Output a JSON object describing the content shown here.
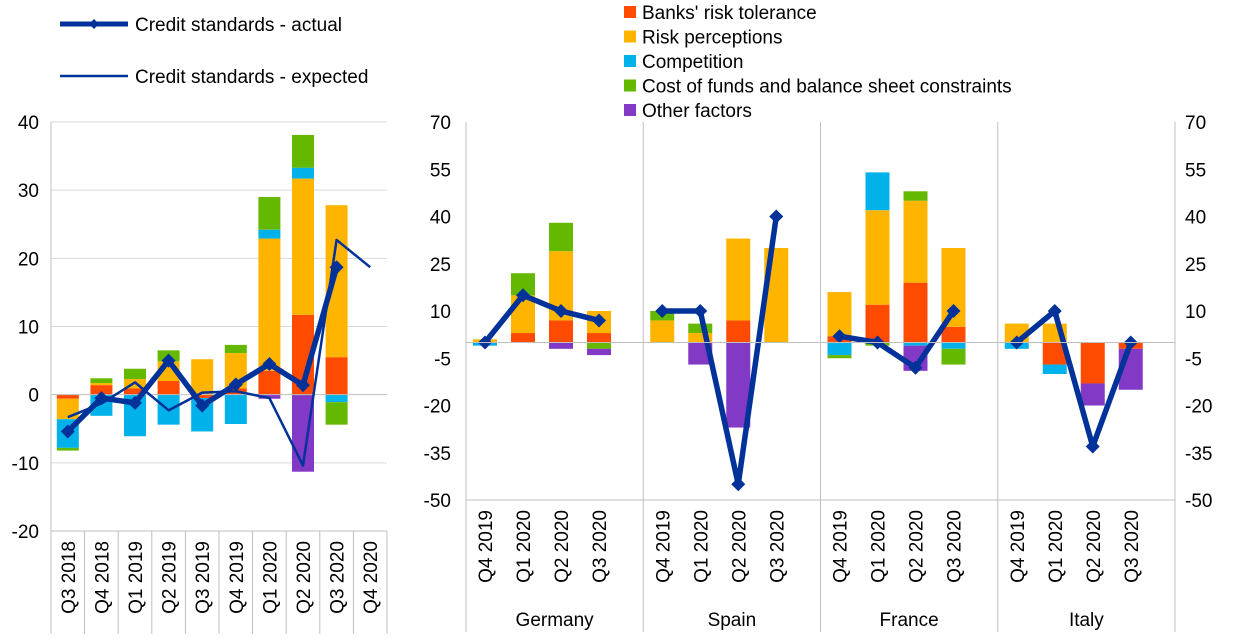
{
  "colors": {
    "banks_risk_tolerance": "#ff4b00",
    "risk_perceptions": "#ffb400",
    "competition": "#00b1ea",
    "cost_of_funds": "#65b800",
    "other_factors": "#8139c6",
    "actual_line": "#003299",
    "expected_line": "#003299",
    "grid": "#d9d9d9"
  },
  "legend": {
    "actual": "Credit standards - actual",
    "expected": "Credit standards - expected",
    "factors": [
      "Banks' risk tolerance",
      "Risk perceptions",
      "Competition",
      "Cost of funds and balance sheet constraints",
      "Other factors"
    ]
  },
  "chart_data": [
    {
      "type": "bar",
      "stacked": true,
      "categories": [
        "Q3 2018",
        "Q4 2018",
        "Q1 2019",
        "Q2 2019",
        "Q3 2019",
        "Q4 2019",
        "Q1 2020",
        "Q2 2020",
        "Q3 2020",
        "Q4 2020"
      ],
      "ylim": [
        -20,
        40
      ],
      "yticks": [
        "-20",
        "-10",
        "0",
        "10",
        "20",
        "30",
        "40"
      ],
      "grid": true,
      "series": [
        {
          "name": "Banks' risk tolerance",
          "key": "banks_risk_tolerance",
          "values": [
            -0.6,
            1.4,
            0.9,
            2.0,
            -0.5,
            0.9,
            3.5,
            11.7,
            5.5,
            null
          ]
        },
        {
          "name": "Risk perceptions",
          "key": "risk_perceptions",
          "values": [
            -3.0,
            0.3,
            1.4,
            2.9,
            5.2,
            5.2,
            19.4,
            20.0,
            22.3,
            null
          ]
        },
        {
          "name": "Competition",
          "key": "competition",
          "values": [
            -4.2,
            -3.1,
            -6.1,
            -4.4,
            -4.9,
            -4.3,
            1.3,
            1.6,
            -1.1,
            null
          ]
        },
        {
          "name": "Cost of funds and balance sheet constraints",
          "key": "cost_of_funds",
          "values": [
            -0.4,
            0.7,
            1.5,
            1.6,
            0.0,
            1.2,
            4.8,
            4.8,
            -3.3,
            null
          ]
        },
        {
          "name": "Other factors",
          "key": "other_factors",
          "values": [
            0.0,
            0.0,
            0.0,
            0.0,
            0.0,
            0.0,
            -0.6,
            -11.3,
            0.0,
            null
          ]
        }
      ],
      "lines": [
        {
          "name": "Credit standards - actual",
          "key": "actual",
          "values": [
            -5.4,
            -0.5,
            -1.2,
            5.0,
            -1.6,
            1.5,
            4.5,
            1.4,
            18.7,
            null
          ]
        },
        {
          "name": "Credit standards - expected",
          "key": "expected",
          "values": [
            -3.3,
            -1.3,
            1.8,
            -2.3,
            0.3,
            0.5,
            -0.5,
            -10.4,
            22.7,
            18.7
          ]
        }
      ]
    },
    {
      "type": "bar",
      "stacked": true,
      "groups": [
        "Germany",
        "Spain",
        "France",
        "Italy"
      ],
      "categories": [
        "Q4 2019",
        "Q1 2020",
        "Q2 2020",
        "Q3 2020"
      ],
      "ylim": [
        -50,
        70
      ],
      "yticks": [
        "-50",
        "-35",
        "-20",
        "-5",
        "10",
        "25",
        "40",
        "55",
        "70"
      ],
      "grid": false,
      "series": [
        {
          "name": "Banks' risk tolerance",
          "key": "banks_risk_tolerance",
          "values": [
            [
              0,
              3,
              7,
              3
            ],
            [
              0,
              0,
              7,
              0
            ],
            [
              2,
              12,
              19,
              5
            ],
            [
              0,
              -7,
              -13,
              -2
            ]
          ]
        },
        {
          "name": "Risk perceptions",
          "key": "risk_perceptions",
          "values": [
            [
              1,
              12,
              22,
              7
            ],
            [
              7,
              3,
              26,
              30
            ],
            [
              14,
              30,
              26,
              25
            ],
            [
              6,
              6,
              0,
              0
            ]
          ]
        },
        {
          "name": "Competition",
          "key": "competition",
          "values": [
            [
              -1,
              0,
              0,
              0
            ],
            [
              0,
              0,
              0,
              0
            ],
            [
              -4,
              12,
              -1,
              -2
            ],
            [
              -2,
              -3,
              0,
              0
            ]
          ]
        },
        {
          "name": "Cost of funds and balance sheet constraints",
          "key": "cost_of_funds",
          "values": [
            [
              0,
              7,
              9,
              -2
            ],
            [
              3,
              3,
              0,
              0
            ],
            [
              -1,
              -1,
              3,
              -5
            ],
            [
              0,
              0,
              0,
              0
            ]
          ]
        },
        {
          "name": "Other factors",
          "key": "other_factors",
          "values": [
            [
              0,
              0,
              -2,
              -2
            ],
            [
              0,
              -7,
              -27,
              0
            ],
            [
              0,
              0,
              -8,
              0
            ],
            [
              0,
              0,
              -7,
              -13
            ]
          ]
        }
      ],
      "lines": [
        {
          "name": "Credit standards - actual",
          "key": "actual",
          "values": [
            [
              0,
              15,
              10,
              7
            ],
            [
              10,
              10,
              -45,
              40
            ],
            [
              2,
              0,
              -8,
              10
            ],
            [
              0,
              10,
              -33,
              0
            ]
          ]
        }
      ]
    }
  ]
}
